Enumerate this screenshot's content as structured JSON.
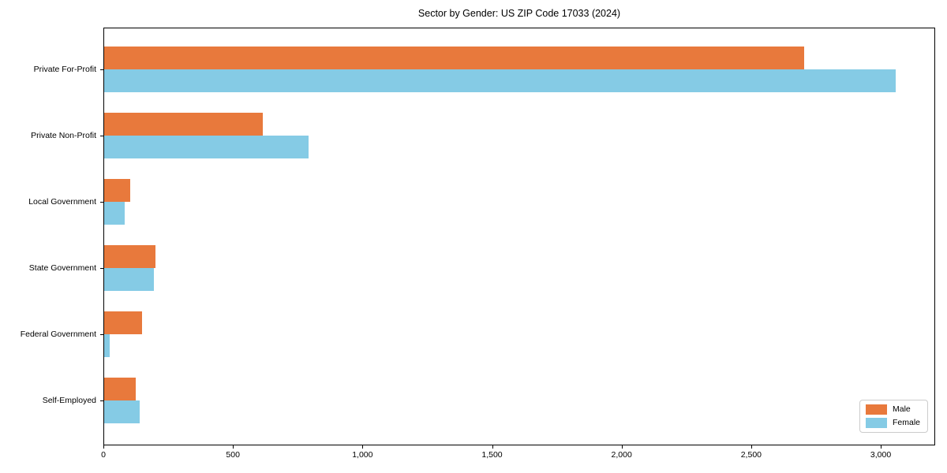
{
  "title": "Sector by Gender: US ZIP Code 17033 (2024)",
  "chart_data": {
    "type": "bar",
    "orientation": "horizontal",
    "title": "Sector by Gender: US ZIP Code 17033 (2024)",
    "xlabel": "",
    "ylabel": "",
    "categories": [
      "Private For-Profit",
      "Private Non-Profit",
      "Local Government",
      "State Government",
      "Federal Government",
      "Self-Employed"
    ],
    "series": [
      {
        "name": "Male",
        "color": "#e8793c",
        "values": [
          2700,
          611,
          100,
          198,
          146,
          122
        ]
      },
      {
        "name": "Female",
        "color": "#85cbe5",
        "values": [
          3055,
          788,
          79,
          192,
          20,
          137
        ]
      }
    ],
    "xlim": [
      0,
      3210
    ],
    "xticks": [
      0,
      500,
      1000,
      1500,
      2000,
      2500,
      3000
    ],
    "xtick_labels": [
      "0",
      "500",
      "1,000",
      "1,500",
      "2,000",
      "2,500",
      "3,000"
    ],
    "grid": false,
    "legend_position": "lower right",
    "legend_items": [
      {
        "label": "Male",
        "color": "#e8793c"
      },
      {
        "label": "Female",
        "color": "#85cbe5"
      }
    ]
  }
}
